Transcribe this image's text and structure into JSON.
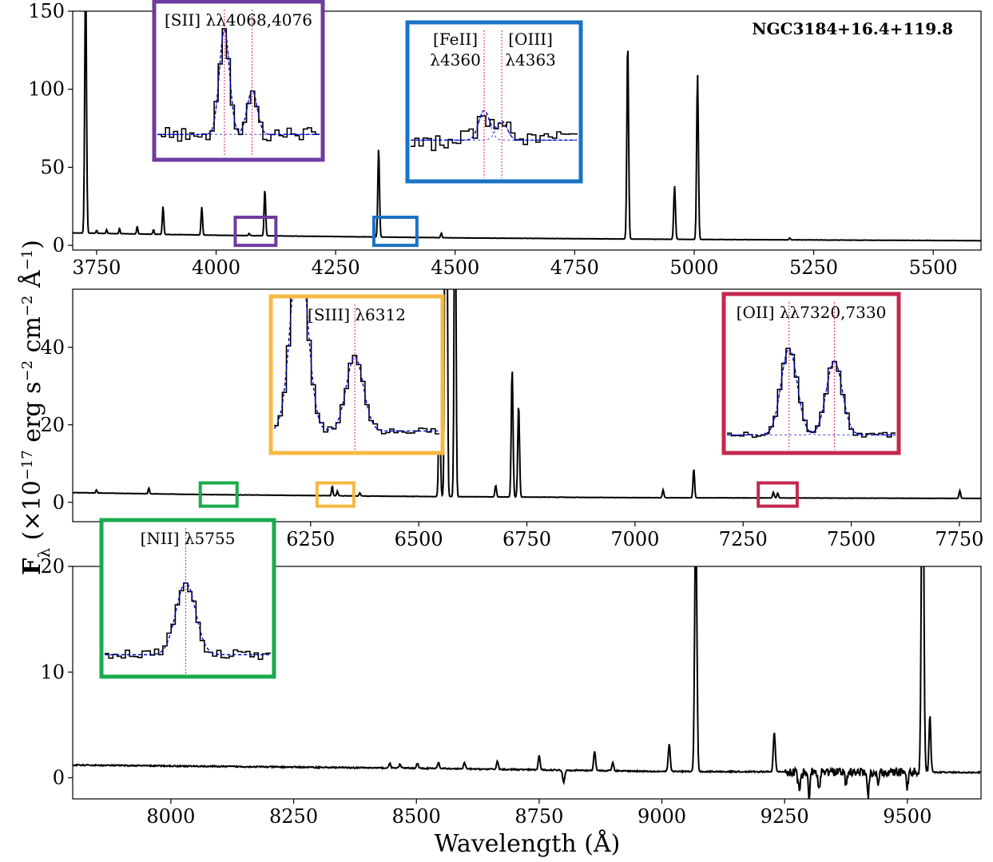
{
  "chart_data": {
    "type": "line",
    "title": "",
    "object_label": "NGC3184+16.4+119.8",
    "xlabel": "Wavelength (Å)",
    "ylabel": "F_λ (×10^-17 erg s^-2 cm^-2 Å^-1)",
    "ylabel_parts": {
      "main": "F",
      "sub": "λ",
      "pre": "(×10",
      "exp": "−17",
      "post": " erg s",
      "exp2": "−2",
      "mid": " cm",
      "exp3": "−2",
      "post2": " Å",
      "exp4": "−1",
      "close": ")"
    },
    "colors": {
      "spectrum": "#000000",
      "fit": "#0000cc",
      "marker": "#e0245e",
      "purple": "#6f3b9e",
      "blue": "#1a73c4",
      "orange": "#f5b942",
      "crimson": "#c4284d",
      "green": "#1aab4b"
    },
    "panels": [
      {
        "id": "top",
        "xlim": [
          3700,
          5600
        ],
        "ylim": [
          -3,
          150
        ],
        "xticks": [
          3750,
          4000,
          4250,
          4500,
          4750,
          5000,
          5250,
          5500
        ],
        "yticks": [
          0,
          50,
          100,
          150
        ],
        "continuum": [
          [
            3700,
            8
          ],
          [
            4000,
            6.5
          ],
          [
            4500,
            4.8
          ],
          [
            5000,
            3.8
          ],
          [
            5600,
            3
          ]
        ],
        "lines": [
          {
            "wave": 3727,
            "peak": 170,
            "width": 1.8
          },
          {
            "wave": 3750,
            "peak": 2,
            "width": 1.2
          },
          {
            "wave": 3771,
            "peak": 2.5,
            "width": 1.2
          },
          {
            "wave": 3798,
            "peak": 3.5,
            "width": 1.2
          },
          {
            "wave": 3835,
            "peak": 5,
            "width": 1.3
          },
          {
            "wave": 3869,
            "peak": 3,
            "width": 1.3
          },
          {
            "wave": 3889,
            "peak": 18,
            "width": 1.5
          },
          {
            "wave": 3970,
            "peak": 18,
            "width": 1.5
          },
          {
            "wave": 4069,
            "peak": 1.5,
            "width": 1.3
          },
          {
            "wave": 4102,
            "peak": 30,
            "width": 1.6
          },
          {
            "wave": 4340,
            "peak": 57,
            "width": 1.7
          },
          {
            "wave": 4471,
            "peak": 3,
            "width": 1.4
          },
          {
            "wave": 4861,
            "peak": 126,
            "width": 1.8
          },
          {
            "wave": 4959,
            "peak": 34,
            "width": 1.8
          },
          {
            "wave": 5007,
            "peak": 106,
            "width": 1.8
          },
          {
            "wave": 5200,
            "peak": 1.2,
            "width": 1.5
          }
        ],
        "zoom_boxes": [
          {
            "color": "purple",
            "x": [
              4040,
              4125
            ],
            "y": [
              0,
              18
            ]
          },
          {
            "color": "blue",
            "x": [
              4330,
              4420
            ],
            "y": [
              0,
              18
            ]
          }
        ]
      },
      {
        "id": "middle",
        "xlim": [
          5700,
          7800
        ],
        "ylim": [
          -5,
          55
        ],
        "xticks": [
          6250,
          6500,
          6750,
          7000,
          7250,
          7500,
          7750
        ],
        "yticks": [
          0,
          20,
          40
        ],
        "continuum": [
          [
            5700,
            2.5
          ],
          [
            6000,
            2
          ],
          [
            6500,
            1.5
          ],
          [
            7000,
            1.2
          ],
          [
            7800,
            1
          ]
        ],
        "lines": [
          {
            "wave": 5755,
            "peak": 0.8,
            "width": 1.5
          },
          {
            "wave": 5876,
            "peak": 1.5,
            "width": 1.5
          },
          {
            "wave": 6300,
            "peak": 2.5,
            "width": 1.6
          },
          {
            "wave": 6312,
            "peak": 1.2,
            "width": 1.6
          },
          {
            "wave": 6364,
            "peak": 0.8,
            "width": 1.6
          },
          {
            "wave": 6548,
            "peak": 28,
            "width": 2
          },
          {
            "wave": 6563,
            "peak": 200,
            "width": 2.2
          },
          {
            "wave": 6584,
            "peak": 95,
            "width": 2
          },
          {
            "wave": 6678,
            "peak": 3,
            "width": 1.8
          },
          {
            "wave": 6716,
            "peak": 33,
            "width": 2
          },
          {
            "wave": 6731,
            "peak": 24,
            "width": 2
          },
          {
            "wave": 7065,
            "peak": 2,
            "width": 1.8
          },
          {
            "wave": 7136,
            "peak": 7.5,
            "width": 1.8
          },
          {
            "wave": 7320,
            "peak": 1.5,
            "width": 1.8
          },
          {
            "wave": 7330,
            "peak": 1.3,
            "width": 1.8
          },
          {
            "wave": 7751,
            "peak": 2,
            "width": 1.8
          }
        ],
        "zoom_boxes": [
          {
            "color": "green",
            "x": [
              5995,
              6080
            ],
            "y": [
              -1,
              5
            ]
          },
          {
            "color": "orange",
            "x": [
              6265,
              6350
            ],
            "y": [
              -1,
              5
            ]
          },
          {
            "color": "crimson",
            "x": [
              7285,
              7375
            ],
            "y": [
              -1,
              5
            ]
          }
        ]
      },
      {
        "id": "bottom",
        "xlim": [
          7800,
          9650
        ],
        "ylim": [
          -2,
          20
        ],
        "xticks": [
          8000,
          8250,
          8500,
          8750,
          9000,
          9250,
          9500
        ],
        "yticks": [
          0,
          10,
          20
        ],
        "continuum": [
          [
            7800,
            1.2
          ],
          [
            8500,
            0.9
          ],
          [
            9000,
            0.6
          ],
          [
            9650,
            0.5
          ]
        ],
        "lines": [
          {
            "wave": 8446,
            "peak": 0.5,
            "width": 1.8
          },
          {
            "wave": 8467,
            "peak": 0.4,
            "width": 1.8
          },
          {
            "wave": 8502,
            "peak": 0.5,
            "width": 1.8
          },
          {
            "wave": 8545,
            "peak": 0.6,
            "width": 1.8
          },
          {
            "wave": 8598,
            "peak": 0.6,
            "width": 1.8
          },
          {
            "wave": 8665,
            "peak": 0.8,
            "width": 1.8
          },
          {
            "wave": 8750,
            "peak": 1.4,
            "width": 1.8
          },
          {
            "wave": 8863,
            "peak": 1.8,
            "width": 2
          },
          {
            "wave": 8900,
            "peak": 0.8,
            "width": 1.8
          },
          {
            "wave": 9015,
            "peak": 2.6,
            "width": 2
          },
          {
            "wave": 9069,
            "peak": 25,
            "width": 2.2
          },
          {
            "wave": 9229,
            "peak": 3.8,
            "width": 2
          },
          {
            "wave": 9531,
            "peak": 42,
            "width": 2.2
          },
          {
            "wave": 9546,
            "peak": 5,
            "width": 2
          }
        ],
        "absorptions": [
          {
            "wave": 8800,
            "depth": 1.2,
            "width": 2
          },
          {
            "wave": 9280,
            "depth": 1.6,
            "width": 3
          },
          {
            "wave": 9300,
            "depth": 2.4,
            "width": 2
          },
          {
            "wave": 9320,
            "depth": 1.5,
            "width": 2
          },
          {
            "wave": 9375,
            "depth": 1.2,
            "width": 2
          },
          {
            "wave": 9420,
            "depth": 2.2,
            "width": 2
          },
          {
            "wave": 9440,
            "depth": 1.2,
            "width": 2
          },
          {
            "wave": 9500,
            "depth": 1.4,
            "width": 2
          }
        ]
      }
    ],
    "insets": [
      {
        "id": "sii",
        "color": "purple",
        "label": "[SII] λλ4068,4076",
        "lines": [
          4068.6,
          4076.3
        ],
        "range": [
          4050,
          4095
        ],
        "peaks": [
          1.0,
          0.42
        ],
        "sigma": 1.4,
        "continuum": 0.15,
        "noise": 0.07
      },
      {
        "id": "feii-oiii",
        "color": "blue",
        "labels": [
          {
            "l1": "[FeII]",
            "l2": "λ4360"
          },
          {
            "l1": "[OIII]",
            "l2": "λ4363"
          }
        ],
        "lines": [
          4359.3,
          4363.2
        ],
        "range": [
          4343,
          4380
        ],
        "peaks": [
          0.28,
          0.18
        ],
        "sigma": 1.2,
        "continuum": 0.3,
        "noise": 0.1
      },
      {
        "id": "siii",
        "color": "orange",
        "label": "[SIII] λ6312",
        "lines": [
          6312.1
        ],
        "range": [
          6295,
          6330
        ],
        "peaks": [
          0.72
        ],
        "sigma": 1.8,
        "continuum": 0.12,
        "noise": 0.03,
        "blend": {
          "wave": 6300.3,
          "peak": 1.8,
          "sigma": 1.8
        }
      },
      {
        "id": "oii",
        "color": "crimson",
        "label": "[OII] λλ7320,7330",
        "lines": [
          7320,
          7330.2
        ],
        "range": [
          7306,
          7344
        ],
        "peaks": [
          0.82,
          0.7
        ],
        "sigma": 1.8,
        "continuum": 0.08,
        "noise": 0.025
      },
      {
        "id": "nii",
        "color": "green",
        "label": "[NII] λ5755",
        "lines": [
          5754.6
        ],
        "range": [
          5738,
          5772
        ],
        "peaks": [
          0.7
        ],
        "sigma": 2,
        "continuum": 0.12,
        "noise": 0.05
      }
    ]
  }
}
